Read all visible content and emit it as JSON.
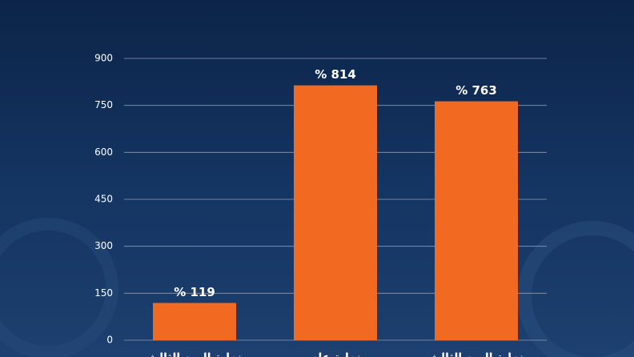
{
  "chart_data": {
    "type": "bar",
    "categories": [
      "نهاية الربع الثالث",
      "نهاية عام",
      "نهاية الربع الثالث"
    ],
    "values": [
      119,
      814,
      763
    ],
    "value_labels": [
      "% 119",
      "% 814",
      "% 763"
    ],
    "color": "#f26a21",
    "ylim": [
      0,
      900
    ],
    "yticks": [
      0,
      150,
      300,
      450,
      600,
      750,
      900
    ],
    "grid": true
  }
}
